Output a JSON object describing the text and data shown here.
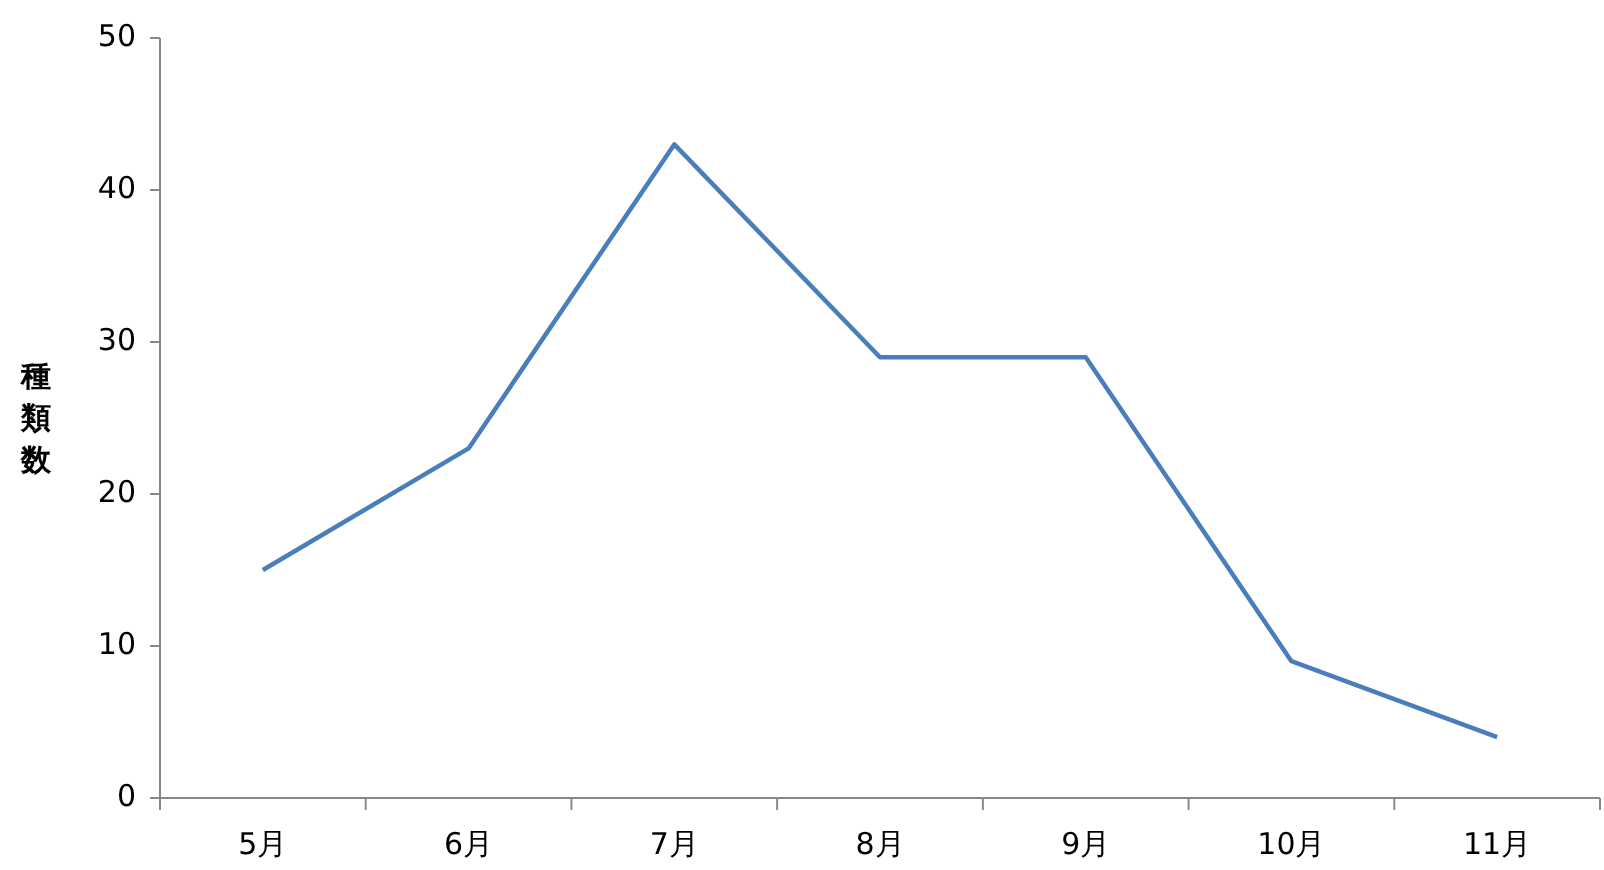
{
  "chart_data": {
    "type": "line",
    "ylabel": "種類数",
    "categories": [
      "5月",
      "6月",
      "7月",
      "8月",
      "9月",
      "10月",
      "11月"
    ],
    "series": [
      {
        "color": "#4a7ebb",
        "values": [
          15,
          23,
          43,
          29,
          29,
          9,
          4
        ]
      }
    ],
    "ylim": [
      0,
      50
    ],
    "yticks": [
      0,
      10,
      20,
      30,
      40,
      50
    ],
    "grid": false,
    "marker": "none",
    "line_style": "solid"
  }
}
